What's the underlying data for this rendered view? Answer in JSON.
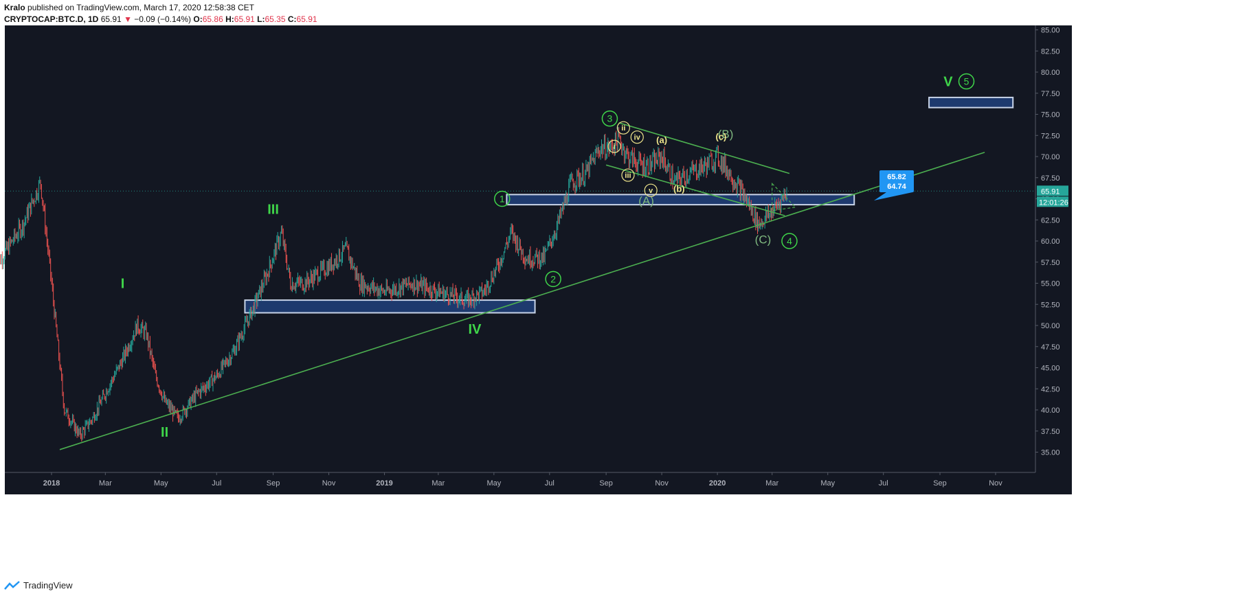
{
  "header": {
    "author": "Kralo",
    "published_text": "published on TradingView.com, March 17, 2020 12:58:38 CET",
    "symbol": "CRYPTOCAP:BTC.D, 1D",
    "price": "65.91",
    "change": "−0.09 (−0.14%)",
    "o_label": "O:",
    "o": "65.86",
    "h_label": "H:",
    "h": "65.91",
    "l_label": "L:",
    "l": "65.35",
    "c_label": "C:",
    "c": "65.91"
  },
  "footer": {
    "brand": "TradingView"
  },
  "colors": {
    "background": "#131722",
    "up": "#26a69a",
    "down": "#ef5350",
    "wave_green": "#3fd64a",
    "trendline": "#4caf50",
    "zone_fill": "#1e3a6e",
    "zone_border": "#c8d4e8",
    "sub_wave": "#f0e68c",
    "price_label": "#26a69a",
    "callout": "#2196f3"
  },
  "chart_data": {
    "type": "candlestick",
    "ylim": [
      33,
      85
    ],
    "y_ticks": [
      "85.00",
      "82.50",
      "80.00",
      "77.50",
      "75.00",
      "72.50",
      "70.00",
      "67.50",
      "65.00",
      "62.50",
      "60.00",
      "57.50",
      "55.00",
      "52.50",
      "50.00",
      "47.50",
      "45.00",
      "42.50",
      "40.00",
      "37.50",
      "35.00"
    ],
    "x_ticks": [
      "2018",
      "Mar",
      "May",
      "Jul",
      "Sep",
      "Nov",
      "2019",
      "Mar",
      "May",
      "Jul",
      "Sep",
      "Nov",
      "2020",
      "Mar",
      "May",
      "Jul",
      "Sep",
      "Nov"
    ],
    "bold_x_ticks": [
      "2018",
      "2019",
      "2020"
    ],
    "price_path": [
      [
        "2017-11-01",
        57
      ],
      [
        "2017-12-01",
        62
      ],
      [
        "2017-12-20",
        67
      ],
      [
        "2018-01-01",
        55
      ],
      [
        "2018-01-15",
        40
      ],
      [
        "2018-02-01",
        37
      ],
      [
        "2018-02-15",
        39
      ],
      [
        "2018-03-01",
        42
      ],
      [
        "2018-03-20",
        46
      ],
      [
        "2018-04-05",
        50
      ],
      [
        "2018-04-15",
        49
      ],
      [
        "2018-04-25",
        44
      ],
      [
        "2018-05-05",
        41
      ],
      [
        "2018-05-20",
        39
      ],
      [
        "2018-06-10",
        42
      ],
      [
        "2018-07-01",
        44
      ],
      [
        "2018-07-20",
        47
      ],
      [
        "2018-08-10",
        52
      ],
      [
        "2018-08-25",
        56
      ],
      [
        "2018-09-10",
        61
      ],
      [
        "2018-09-20",
        55
      ],
      [
        "2018-10-05",
        55
      ],
      [
        "2018-11-01",
        57
      ],
      [
        "2018-11-20",
        59
      ],
      [
        "2018-12-05",
        55
      ],
      [
        "2019-01-01",
        54
      ],
      [
        "2019-02-01",
        55
      ],
      [
        "2019-03-01",
        54
      ],
      [
        "2019-04-01",
        53
      ],
      [
        "2019-04-20",
        54
      ],
      [
        "2019-05-05",
        57
      ],
      [
        "2019-05-20",
        61
      ],
      [
        "2019-06-05",
        58
      ],
      [
        "2019-06-25",
        58
      ],
      [
        "2019-07-10",
        62
      ],
      [
        "2019-07-25",
        67
      ],
      [
        "2019-08-10",
        68
      ],
      [
        "2019-08-25",
        71
      ],
      [
        "2019-09-05",
        71
      ],
      [
        "2019-09-15",
        72
      ],
      [
        "2019-09-25",
        70
      ],
      [
        "2019-10-10",
        69
      ],
      [
        "2019-10-20",
        69
      ],
      [
        "2019-11-01",
        70
      ],
      [
        "2019-11-15",
        67
      ],
      [
        "2019-12-01",
        68
      ],
      [
        "2019-12-20",
        69
      ],
      [
        "2020-01-01",
        70
      ],
      [
        "2020-01-15",
        68
      ],
      [
        "2020-02-01",
        65
      ],
      [
        "2020-02-15",
        62
      ],
      [
        "2020-02-25",
        63
      ],
      [
        "2020-03-05",
        64
      ],
      [
        "2020-03-17",
        65.91
      ]
    ],
    "trendlines": [
      {
        "from": [
          "2018-01-10",
          35.3
        ],
        "to": [
          "2020-10-20",
          70.5
        ]
      },
      {
        "from": [
          "2019-09-15",
          74
        ],
        "to": [
          "2020-03-20",
          68
        ]
      },
      {
        "from": [
          "2019-09-01",
          69
        ],
        "to": [
          "2020-03-15",
          63
        ]
      }
    ],
    "zones": [
      {
        "x0": "2018-08-01",
        "x1": "2019-06-15",
        "y0": 51.5,
        "y1": 53.0
      },
      {
        "x0": "2019-05-15",
        "x1": "2020-05-30",
        "y0": 64.3,
        "y1": 65.5
      },
      {
        "x0": "2020-08-20",
        "x1": "2020-11-20",
        "y0": 75.8,
        "y1": 77.0
      }
    ],
    "waves": [
      {
        "label": "I",
        "date": "2018-03-20",
        "value": 55,
        "style": "roman"
      },
      {
        "label": "II",
        "date": "2018-05-05",
        "value": 37.4,
        "style": "roman"
      },
      {
        "label": "III",
        "date": "2018-09-01",
        "value": 63.8,
        "style": "roman"
      },
      {
        "label": "IV",
        "date": "2019-04-10",
        "value": 49.6,
        "style": "roman"
      },
      {
        "label": "V",
        "date": "2020-09-10",
        "value": 78.9,
        "style": "roman"
      },
      {
        "label": "1",
        "date": "2019-05-10",
        "value": 65.0,
        "style": "circle"
      },
      {
        "label": "2",
        "date": "2019-07-05",
        "value": 55.5,
        "style": "circle"
      },
      {
        "label": "3",
        "date": "2019-09-05",
        "value": 74.5,
        "style": "circle"
      },
      {
        "label": "4",
        "date": "2020-03-20",
        "value": 60.0,
        "style": "circle"
      },
      {
        "label": "5",
        "date": "2020-09-30",
        "value": 78.9,
        "style": "circle"
      },
      {
        "label": "(A)",
        "date": "2019-10-15",
        "value": 64.8,
        "style": "paren"
      },
      {
        "label": "(B)",
        "date": "2020-01-10",
        "value": 72.7,
        "style": "paren"
      },
      {
        "label": "(C)",
        "date": "2020-02-20",
        "value": 60.2,
        "style": "paren"
      },
      {
        "label": "i",
        "date": "2019-09-10",
        "value": 71.2,
        "style": "sub"
      },
      {
        "label": "ii",
        "date": "2019-09-20",
        "value": 73.4,
        "style": "sub"
      },
      {
        "label": "iii",
        "date": "2019-09-25",
        "value": 67.8,
        "style": "sub"
      },
      {
        "label": "iv",
        "date": "2019-10-05",
        "value": 72.3,
        "style": "sub"
      },
      {
        "label": "v",
        "date": "2019-10-20",
        "value": 66.0,
        "style": "sub"
      },
      {
        "label": "(a)",
        "date": "2019-11-01",
        "value": 72.0,
        "style": "subtext"
      },
      {
        "label": "(b)",
        "date": "2019-11-20",
        "value": 66.2,
        "style": "subtext"
      },
      {
        "label": "(c)",
        "date": "2020-01-05",
        "value": 72.4,
        "style": "subtext"
      }
    ],
    "current_price": "65.91",
    "countdown": "12:01:26",
    "callout": [
      "65.82",
      "64.74"
    ]
  }
}
